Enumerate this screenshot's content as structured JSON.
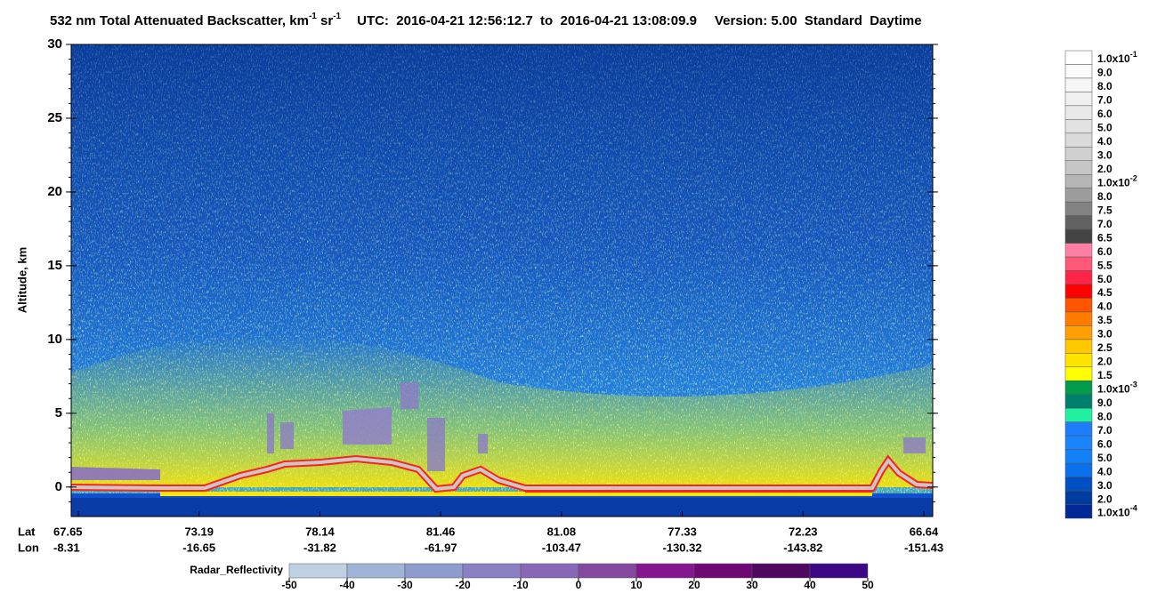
{
  "title": {
    "main": "532 nm Total Attenuated Backscatter, km",
    "exp1": "-1",
    "unit2": " sr",
    "exp2": "-1",
    "utc": "UTC:  2016-04-21 12:56:12.7  to  2016-04-21 13:08:09.9",
    "version": "Version: 5.00  Standard  Daytime"
  },
  "plot": {
    "y_label": "Altitude, km",
    "ylim": [
      -2,
      30
    ],
    "yticks": [
      0,
      5,
      10,
      15,
      20,
      25,
      30
    ],
    "row_labels": [
      "Lat",
      "Lon"
    ],
    "x_ticks": [
      {
        "lat": "67.65",
        "lon": "-8.31"
      },
      {
        "lat": "73.19",
        "lon": "-16.65"
      },
      {
        "lat": "78.14",
        "lon": "-31.82"
      },
      {
        "lat": "81.46",
        "lon": "-61.97"
      },
      {
        "lat": "81.08",
        "lon": "-103.47"
      },
      {
        "lat": "77.33",
        "lon": "-130.32"
      },
      {
        "lat": "72.23",
        "lon": "-143.82"
      },
      {
        "lat": "66.64",
        "lon": "-151.43"
      }
    ]
  },
  "backscatter_scale": {
    "labels": [
      {
        "text": "1.0x10",
        "sup": "-1"
      },
      "9.0",
      "8.0",
      "7.0",
      "6.0",
      "5.0",
      "4.0",
      "3.0",
      "2.0",
      {
        "text": "1.0x10",
        "sup": "-2"
      },
      "8.0",
      "7.5",
      "7.0",
      "6.5",
      "6.0",
      "5.5",
      "5.0",
      "4.5",
      "4.0",
      "3.5",
      "3.0",
      "2.5",
      "2.0",
      "1.5",
      {
        "text": "1.0x10",
        "sup": "-3"
      },
      "9.0",
      "8.0",
      "7.0",
      "6.0",
      "5.0",
      "4.0",
      "3.0",
      "2.0",
      {
        "text": "1.0x10",
        "sup": "-4"
      }
    ],
    "colors": [
      "#ffffff",
      "#fbfbfb",
      "#f6f6f6",
      "#f0f0f0",
      "#e9e9e9",
      "#e2e2e2",
      "#dadada",
      "#d0d0d0",
      "#c6c6c6",
      "#b6b6b6",
      "#9c9c9c",
      "#828282",
      "#626262",
      "#444444",
      "#ff80a4",
      "#ff5878",
      "#ff2448",
      "#ff0000",
      "#ff5400",
      "#ff7c00",
      "#ffa000",
      "#ffc800",
      "#ffe400",
      "#ffff00",
      "#009c4c",
      "#00806c",
      "#20f0a0",
      "#1e7cff",
      "#1a84ff",
      "#1280f8",
      "#0a70ec",
      "#0050c4",
      "#003ca0",
      "#002896"
    ]
  },
  "radar_scale": {
    "title": "Radar_Reflectivity",
    "ticks": [
      -50,
      -40,
      -30,
      -20,
      -10,
      0,
      10,
      20,
      30,
      40,
      50
    ],
    "colors": [
      "#c0d0e4",
      "#9fb4d6",
      "#8e9ccc",
      "#8a80c4",
      "#8866b8",
      "#84489e",
      "#861690",
      "#6e0872",
      "#4e0860",
      "#3c0884"
    ]
  }
}
